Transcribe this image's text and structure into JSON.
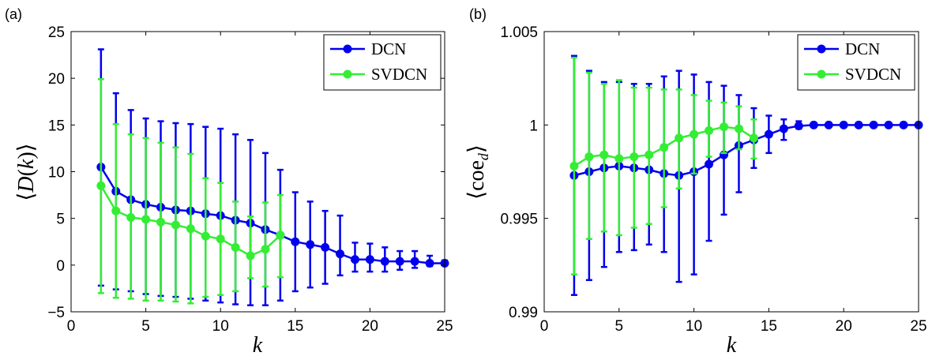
{
  "chart_data": [
    {
      "type": "line",
      "panel_label": "(a)",
      "xlabel": "k",
      "ylabel_parts": [
        "⟨",
        "D",
        "(",
        "k",
        ")",
        "⟩"
      ],
      "xlim": [
        0,
        25
      ],
      "ylim": [
        -5,
        25
      ],
      "xticks": [
        0,
        5,
        10,
        15,
        20,
        25
      ],
      "yticks": [
        -5,
        0,
        5,
        10,
        15,
        20,
        25
      ],
      "xtick_labels": [
        "0",
        "5",
        "10",
        "15",
        "20",
        "25"
      ],
      "ytick_labels": [
        "−5",
        "0",
        "5",
        "10",
        "15",
        "20",
        "25"
      ],
      "grid": false,
      "legend_position": "top-right",
      "series": [
        {
          "name": "DCN",
          "color": "#0000ee",
          "x": [
            2,
            3,
            4,
            5,
            6,
            7,
            8,
            9,
            10,
            11,
            12,
            13,
            14,
            15,
            16,
            17,
            18,
            19,
            20,
            21,
            22,
            23,
            24,
            25
          ],
          "y": [
            10.5,
            7.9,
            7.0,
            6.5,
            6.2,
            5.9,
            5.8,
            5.5,
            5.3,
            4.8,
            4.5,
            3.8,
            3.2,
            2.5,
            2.2,
            1.9,
            1.2,
            0.6,
            0.6,
            0.4,
            0.4,
            0.4,
            0.2,
            0.2
          ],
          "err_low": [
            -2.2,
            -2.6,
            -2.8,
            -3.1,
            -3.3,
            -3.4,
            -3.6,
            -3.8,
            -4.0,
            -4.2,
            -4.3,
            -4.3,
            -3.8,
            -2.8,
            -2.4,
            -2.0,
            -1.1,
            -0.7,
            -0.7,
            -0.7,
            -0.5,
            -0.3,
            -0.1,
            0.1
          ],
          "err_high": [
            23.1,
            18.4,
            16.6,
            15.7,
            15.4,
            15.2,
            15.1,
            14.8,
            14.6,
            14.0,
            13.4,
            12.0,
            10.2,
            7.8,
            6.8,
            5.8,
            5.3,
            2.4,
            2.3,
            1.9,
            1.5,
            1.5,
            1.0,
            0.5
          ]
        },
        {
          "name": "SVDCN",
          "color": "#33ee33",
          "x": [
            2,
            3,
            4,
            5,
            6,
            7,
            8,
            9,
            10,
            11,
            12,
            13,
            14
          ],
          "y": [
            8.5,
            5.8,
            5.1,
            4.9,
            4.6,
            4.3,
            3.9,
            3.1,
            2.8,
            1.9,
            1.0,
            1.7,
            3.2
          ],
          "err_low": [
            -3.0,
            -3.5,
            -3.6,
            -3.8,
            -3.8,
            -3.9,
            -4.1,
            -3.4,
            -3.2,
            -2.8,
            -1.4,
            -2.3,
            -1.3
          ],
          "err_high": [
            19.9,
            15.1,
            14.0,
            13.6,
            13.1,
            12.6,
            11.9,
            9.3,
            8.8,
            6.8,
            5.2,
            6.7,
            7.5
          ]
        }
      ]
    },
    {
      "type": "line",
      "panel_label": "(b)",
      "xlabel": "k",
      "ylabel_parts": [
        "⟨",
        "coe",
        "d",
        "⟩"
      ],
      "xlim": [
        0,
        25
      ],
      "ylim": [
        0.99,
        1.005
      ],
      "xticks": [
        0,
        5,
        10,
        15,
        20,
        25
      ],
      "yticks": [
        0.99,
        0.995,
        1.0,
        1.005
      ],
      "xtick_labels": [
        "0",
        "5",
        "10",
        "15",
        "20",
        "25"
      ],
      "ytick_labels": [
        "0.99",
        "0.995",
        "1",
        "1.005"
      ],
      "grid": false,
      "legend_position": "top-right",
      "series": [
        {
          "name": "DCN",
          "color": "#0000ee",
          "x": [
            2,
            3,
            4,
            5,
            6,
            7,
            8,
            9,
            10,
            11,
            12,
            13,
            14,
            15,
            16,
            17,
            18,
            19,
            20,
            21,
            22,
            23,
            24,
            25
          ],
          "y": [
            0.9973,
            0.9975,
            0.9977,
            0.9978,
            0.9977,
            0.9976,
            0.9974,
            0.9973,
            0.9975,
            0.9979,
            0.9984,
            0.9989,
            0.9992,
            0.9995,
            0.9998,
            0.99995,
            1.0,
            1.0,
            1.0,
            1.0,
            1.0,
            1.0,
            1.0,
            1.0
          ],
          "err_low": [
            0.9909,
            0.9917,
            0.9924,
            0.9932,
            0.9933,
            0.9936,
            0.9932,
            0.9916,
            0.992,
            0.9938,
            0.9952,
            0.9964,
            0.9977,
            0.9985,
            0.9992,
            0.9998,
            0.99995,
            0.99998,
            1.0,
            1.0,
            1.0,
            1.0,
            1.0,
            1.0
          ],
          "err_high": [
            1.0037,
            1.0029,
            1.0023,
            1.0023,
            1.0022,
            1.0022,
            1.0026,
            1.0029,
            1.0027,
            1.0023,
            1.0021,
            1.0016,
            1.0009,
            1.0005,
            1.0003,
            1.0002,
            1.00005,
            1.00002,
            1.0,
            1.0,
            1.0,
            1.0,
            1.0,
            1.0
          ]
        },
        {
          "name": "SVDCN",
          "color": "#33ee33",
          "x": [
            2,
            3,
            4,
            5,
            6,
            7,
            8,
            9,
            10,
            11,
            12,
            13,
            14
          ],
          "y": [
            0.9978,
            0.9983,
            0.9984,
            0.9982,
            0.9983,
            0.9984,
            0.9988,
            0.9993,
            0.9995,
            0.9997,
            0.9999,
            0.9998,
            0.9993
          ],
          "err_low": [
            0.992,
            0.9939,
            0.9943,
            0.9941,
            0.9945,
            0.9947,
            0.9956,
            0.9966,
            0.9974,
            0.9983,
            0.9985,
            0.9987,
            0.9982
          ],
          "err_high": [
            1.0036,
            1.0028,
            1.0022,
            1.0024,
            1.002,
            1.002,
            1.0019,
            1.0019,
            1.0016,
            1.0013,
            1.0012,
            1.001,
            1.0003
          ]
        }
      ]
    }
  ]
}
